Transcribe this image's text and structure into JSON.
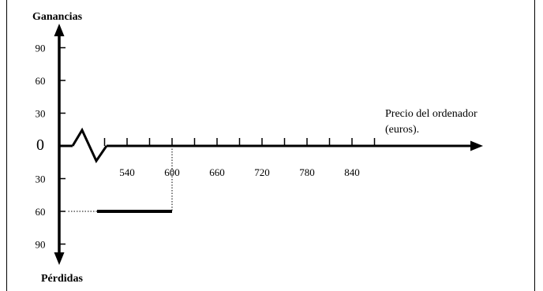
{
  "chart_data": {
    "type": "line",
    "ylabel_top": "Ganancias",
    "ylabel_bottom": "Pérdidas",
    "xlabel_line1": "Precio del ordenador",
    "xlabel_line2": "(euros).",
    "x_ticks": [
      {
        "value": 540,
        "label": "540"
      },
      {
        "value": 600,
        "label": "600"
      },
      {
        "value": 660,
        "label": "660"
      },
      {
        "value": 720,
        "label": "720"
      },
      {
        "value": 780,
        "label": "780"
      },
      {
        "value": 840,
        "label": "840"
      }
    ],
    "y_ticks": [
      {
        "value": 90,
        "label": "90"
      },
      {
        "value": 60,
        "label": "60"
      },
      {
        "value": 30,
        "label": "30"
      },
      {
        "value": 0,
        "label": "0"
      },
      {
        "value": -30,
        "label": "30"
      },
      {
        "value": -60,
        "label": "60"
      },
      {
        "value": -90,
        "label": "90"
      }
    ],
    "axis_break": true,
    "series": [
      {
        "x": [
          500,
          600
        ],
        "y": [
          -60,
          -60
        ]
      }
    ],
    "guides": [
      {
        "from": {
          "x": 600,
          "y": 0
        },
        "to": {
          "x": 600,
          "y": -60
        },
        "style": "dotted"
      },
      {
        "from": {
          "x": 500,
          "y": -60
        },
        "to": {
          "x": 460,
          "y": -60
        },
        "style": "dotted"
      }
    ]
  }
}
